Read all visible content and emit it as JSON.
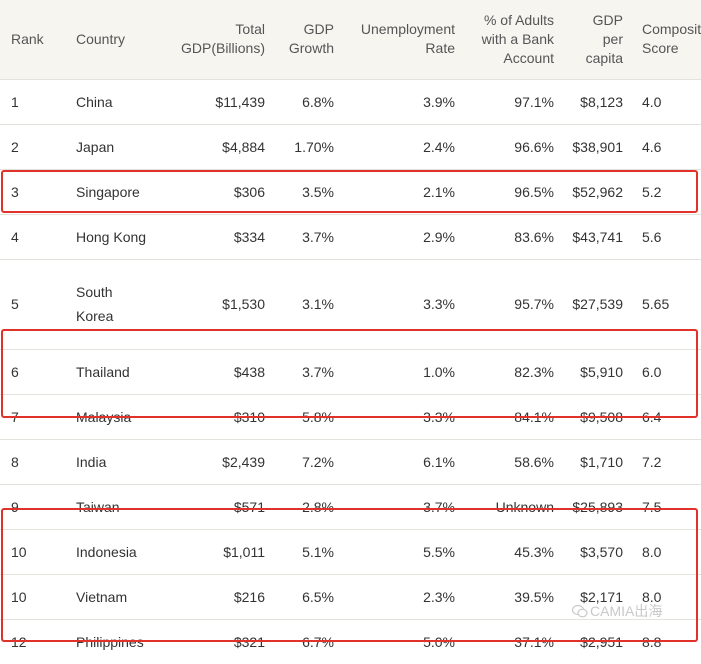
{
  "table": {
    "headers": {
      "rank": "Rank",
      "country": "Country",
      "gdp_line1": "Total",
      "gdp_line2": "GDP(Billions)",
      "growth_line1": "GDP",
      "growth_line2": "Growth",
      "unemp_line1": "Unemployment",
      "unemp_line2": "Rate",
      "bank_line1": "% of Adults",
      "bank_line2": "with a Bank",
      "bank_line3": "Account",
      "pc_line1": "GDP",
      "pc_line2": "per",
      "pc_line3": "capita",
      "score_line1": "Composite",
      "score_line2": "Score"
    },
    "rows": [
      {
        "rank": "1",
        "country": "China",
        "gdp": "$11,439",
        "growth": "6.8%",
        "unemp": "3.9%",
        "bank": "97.1%",
        "pc": "$8,123",
        "score": "4.0"
      },
      {
        "rank": "2",
        "country": "Japan",
        "gdp": "$4,884",
        "growth": "1.70%",
        "unemp": "2.4%",
        "bank": "96.6%",
        "pc": "$38,901",
        "score": "4.6"
      },
      {
        "rank": "3",
        "country": "Singapore",
        "gdp": "$306",
        "growth": "3.5%",
        "unemp": "2.1%",
        "bank": "96.5%",
        "pc": "$52,962",
        "score": "5.2"
      },
      {
        "rank": "4",
        "country": "Hong Kong",
        "gdp": "$334",
        "growth": "3.7%",
        "unemp": "2.9%",
        "bank": "83.6%",
        "pc": "$43,741",
        "score": "5.6"
      },
      {
        "rank": "5",
        "country": "South Korea",
        "country_line1": "South",
        "country_line2": "Korea",
        "gdp": "$1,530",
        "growth": "3.1%",
        "unemp": "3.3%",
        "bank": "95.7%",
        "pc": "$27,539",
        "score": "5.65"
      },
      {
        "rank": "6",
        "country": "Thailand",
        "gdp": "$438",
        "growth": "3.7%",
        "unemp": "1.0%",
        "bank": "82.3%",
        "pc": "$5,910",
        "score": "6.0"
      },
      {
        "rank": "7",
        "country": "Malaysia",
        "gdp": "$310",
        "growth": "5.8%",
        "unemp": "3.3%",
        "bank": "84.1%",
        "pc": "$9,508",
        "score": "6.4"
      },
      {
        "rank": "8",
        "country": "India",
        "gdp": "$2,439",
        "growth": "7.2%",
        "unemp": "6.1%",
        "bank": "58.6%",
        "pc": "$1,710",
        "score": "7.2"
      },
      {
        "rank": "9",
        "country": "Taiwan",
        "gdp": "$571",
        "growth": "2.8%",
        "unemp": "3.7%",
        "bank": "Unknown",
        "pc": "$25,893",
        "score": "7.5"
      },
      {
        "rank": "10",
        "country": "Indonesia",
        "gdp": "$1,011",
        "growth": "5.1%",
        "unemp": "5.5%",
        "bank": "45.3%",
        "pc": "$3,570",
        "score": "8.0"
      },
      {
        "rank": "10",
        "country": "Vietnam",
        "gdp": "$216",
        "growth": "6.5%",
        "unemp": "2.3%",
        "bank": "39.5%",
        "pc": "$2,171",
        "score": "8.0"
      },
      {
        "rank": "12",
        "country": "Philippines",
        "gdp": "$321",
        "growth": "6.7%",
        "unemp": "5.0%",
        "bank": "37.1%",
        "pc": "$2,951",
        "score": "8.8"
      }
    ]
  },
  "highlight_color": "#e0312b",
  "watermark": {
    "text": "CAMIA出海",
    "icon": "wechat-icon"
  }
}
